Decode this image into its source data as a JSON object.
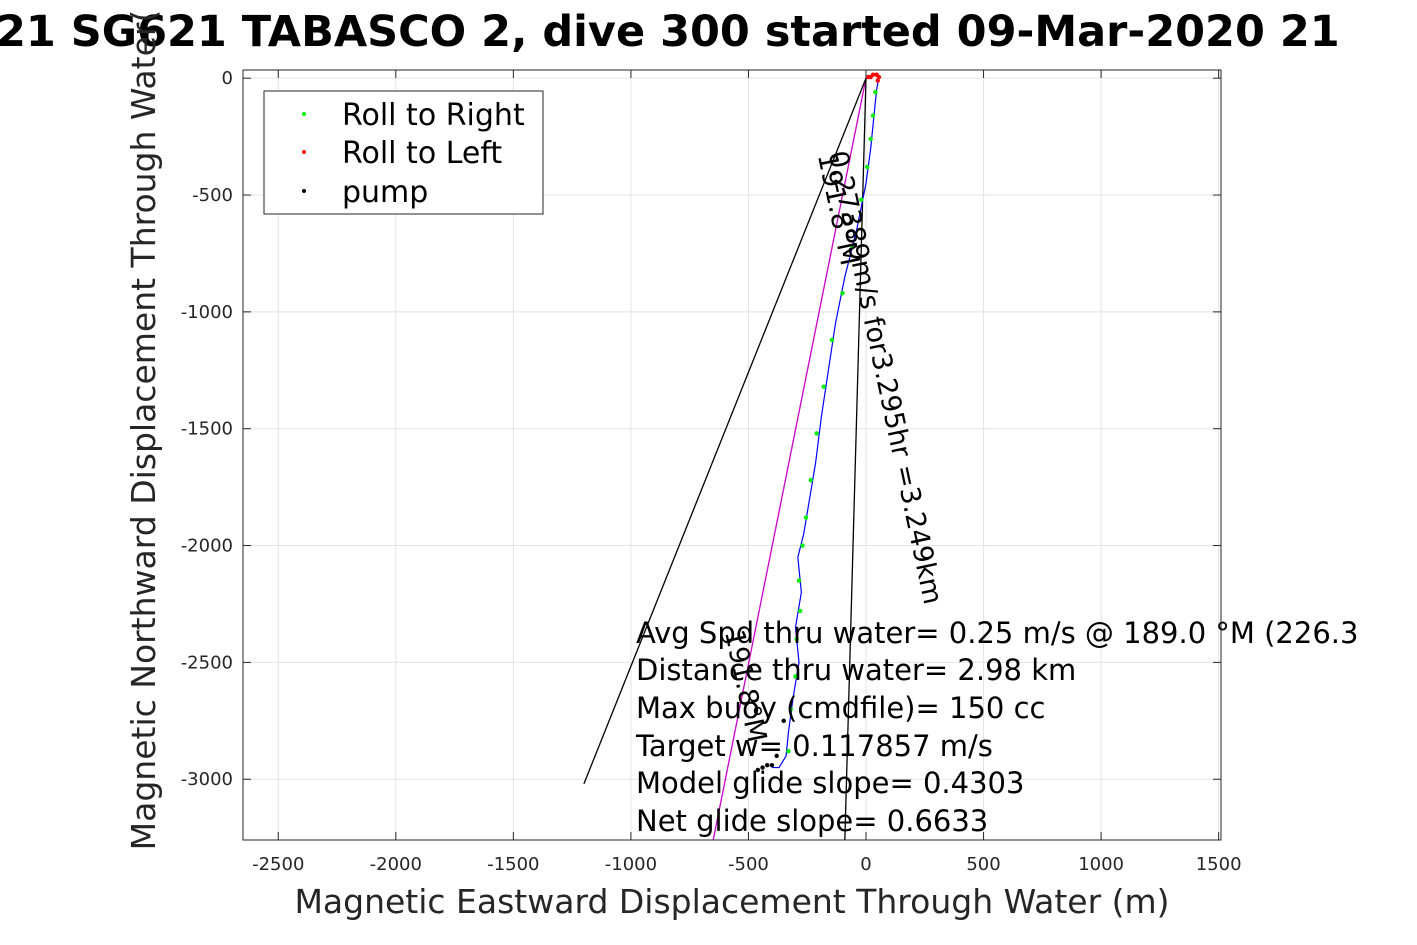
{
  "chart_data": {
    "type": "line",
    "title": "21 SG621 TABASCO 2, dive 300 started 09-Mar-2020 21",
    "xlabel": "Magnetic Eastward Displacement Through Water (m)",
    "ylabel": "Magnetic Northward Displacement Through Water(",
    "xlim": [
      -2650,
      1510
    ],
    "ylim": [
      -3260,
      35
    ],
    "x_ticks": [
      -2500,
      -2000,
      -1500,
      -1000,
      -500,
      0,
      500,
      1000,
      1500
    ],
    "x_tick_labels": [
      "-2500",
      "-2000",
      "-1500",
      "-1000",
      "-500",
      "0",
      "500",
      "1000",
      "1500"
    ],
    "y_ticks": [
      0,
      -500,
      -1000,
      -1500,
      -2000,
      -2500,
      -3000
    ],
    "y_tick_labels": [
      "0",
      "-500",
      "-1000",
      "-1500",
      "-2000",
      "-2500",
      "-3000"
    ],
    "grid": true,
    "legend_position": "top-left",
    "legend": [
      {
        "label": "Roll to Right",
        "color": "#00ee00"
      },
      {
        "label": "Roll to Left",
        "color": "#ff0000"
      },
      {
        "label": "pump",
        "color": "#000000"
      }
    ],
    "series": [
      {
        "name": "track",
        "color": "#0000ff",
        "x": [
          0,
          30,
          55,
          45,
          35,
          20,
          0,
          -40,
          -90,
          -130,
          -160,
          -190,
          -215,
          -240,
          -265,
          -290,
          -275,
          -300,
          -285,
          -310,
          -330,
          -340,
          -370,
          -395,
          -400
        ],
        "y": [
          0,
          15,
          5,
          -50,
          -150,
          -300,
          -450,
          -650,
          -850,
          -1050,
          -1250,
          -1450,
          -1650,
          -1800,
          -1950,
          -2050,
          -2200,
          -2350,
          -2500,
          -2650,
          -2800,
          -2900,
          -2950,
          -2950,
          -2950
        ]
      },
      {
        "name": "Roll to Right",
        "color": "#00ee00",
        "x": [
          40,
          30,
          20,
          5,
          -20,
          -60,
          -100,
          -145,
          -180,
          -210,
          -235,
          -255,
          -270,
          -285,
          -280,
          -295,
          -300,
          -320,
          -330
        ],
        "y": [
          -60,
          -160,
          -260,
          -380,
          -520,
          -720,
          -920,
          -1120,
          -1320,
          -1520,
          -1720,
          -1880,
          -2000,
          -2150,
          -2280,
          -2400,
          -2560,
          -2700,
          -2880
        ]
      },
      {
        "name": "Roll to Left",
        "color": "#ff0000",
        "x": [
          20,
          30,
          45,
          55,
          50,
          10
        ],
        "y": [
          5,
          15,
          15,
          5,
          -10,
          5
        ]
      },
      {
        "name": "pump",
        "color": "#000000",
        "x": [
          -420,
          -380,
          -350,
          -400,
          -440,
          -460
        ],
        "y": [
          -2940,
          -2900,
          -2750,
          -2940,
          -2950,
          -2960
        ]
      }
    ],
    "reference_lines": [
      {
        "color": "#cc00cc",
        "x": [
          0,
          -650
        ],
        "y": [
          0,
          -3260
        ]
      },
      {
        "color": "#000000",
        "x": [
          0,
          -1200
        ],
        "y": [
          0,
          -3020
        ]
      },
      {
        "color": "#000000",
        "x": [
          0,
          -90
        ],
        "y": [
          0,
          -3260
        ]
      }
    ],
    "rotated_annotations": [
      {
        "text": "0.27389m/s for3.295hr =3.249km",
        "x": -160,
        "y": -320
      },
      {
        "text": "191.8°M",
        "x": -205,
        "y": -330
      },
      {
        "text": "191.8°M",
        "x": -600,
        "y": -2370
      }
    ],
    "annotations": [
      "Avg Spd thru water=  0.25 m/s @ 189.0 °M (226.3",
      "Distance thru water=  2.98 km",
      "Max buoy (cmdfile)= 150 cc",
      "Target w= 0.117857 m/s",
      "Model glide slope= 0.4303",
      "Net glide slope= 0.6633"
    ]
  }
}
